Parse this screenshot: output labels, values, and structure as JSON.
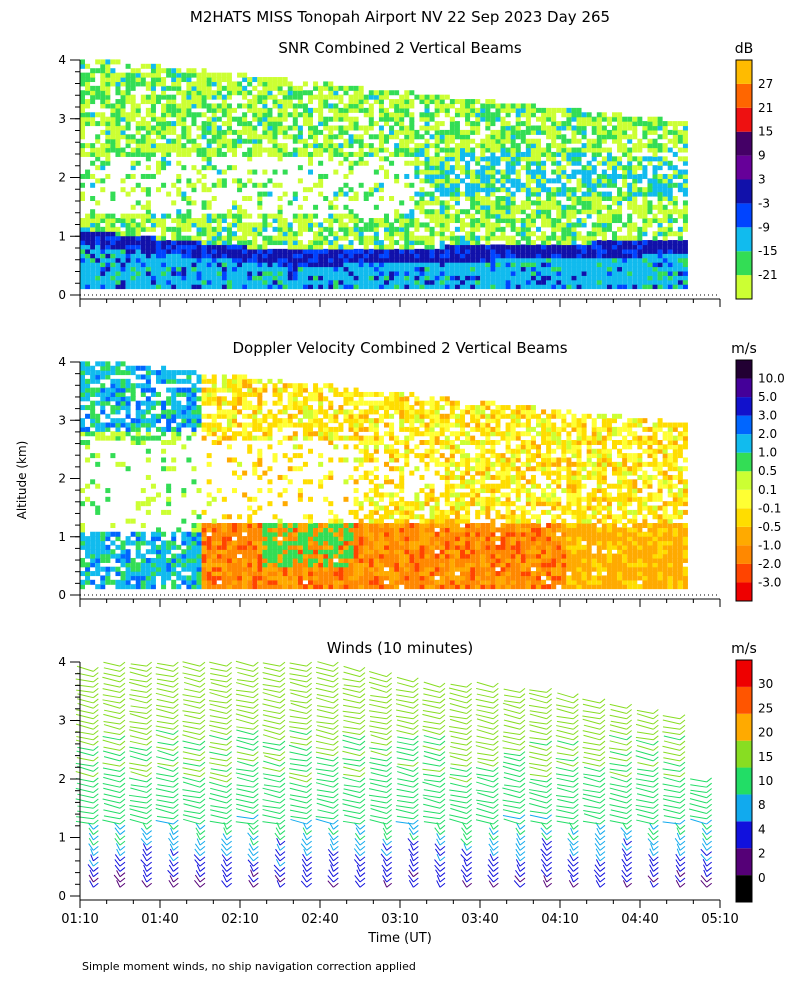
{
  "figure": {
    "title": "M2HATS MISS Tonopah Airport NV  22 Sep 2023 Day 265",
    "ylabel": "Altitude (km)",
    "xlabel": "Time (UT)",
    "footnote": "Simple moment winds, no ship navigation correction applied"
  },
  "colors": {
    "snr": [
      "#ccff33",
      "#33dd55",
      "#11bbee",
      "#0044ff",
      "#1111aa",
      "#660099",
      "#440066",
      "#ee1111",
      "#ff6600",
      "#ffbb00"
    ],
    "doppler": [
      "#ee0000",
      "#ff4400",
      "#ff8800",
      "#ffaa00",
      "#ffdd00",
      "#ffff33",
      "#ccff33",
      "#33dd55",
      "#11bbee",
      "#0066ff",
      "#1111cc",
      "#440099",
      "#220033"
    ],
    "winds": [
      "#000000",
      "#550077",
      "#1111dd",
      "#11aaee",
      "#22dd66",
      "#88dd22",
      "#ffaa00",
      "#ff5500",
      "#ee0000"
    ]
  },
  "chart_data": [
    {
      "type": "heatmap",
      "title": "SNR Combined 2 Vertical Beams",
      "xlabel": "",
      "ylabel": "Altitude (km)",
      "xlim": [
        "01:10",
        "05:10"
      ],
      "ylim": [
        0,
        4
      ],
      "x_ticks": [
        "01:10",
        "01:40",
        "02:10",
        "02:40",
        "03:10",
        "03:40",
        "04:10",
        "04:40",
        "05:10"
      ],
      "y_ticks": [
        "0",
        "1",
        "2",
        "3",
        "4"
      ],
      "colorbar": {
        "unit": "dB",
        "labels": [
          "-21",
          "-15",
          "-9",
          "-3",
          "3",
          "9",
          "15",
          "21",
          "27"
        ]
      },
      "data_end_time": "04:58",
      "top_altitude_km_start": 4.0,
      "top_altitude_km_end": 2.9,
      "strong_layer_km_start": 0.95,
      "strong_layer_km_mid": 0.6,
      "strong_layer_km_end": 0.8
    },
    {
      "type": "heatmap",
      "title": "Doppler Velocity Combined 2 Vertical Beams",
      "xlabel": "",
      "ylabel": "Altitude (km)",
      "xlim": [
        "01:10",
        "05:10"
      ],
      "ylim": [
        0,
        4
      ],
      "x_ticks": [
        "01:10",
        "01:40",
        "02:10",
        "02:40",
        "03:10",
        "03:40",
        "04:10",
        "04:40",
        "05:10"
      ],
      "y_ticks": [
        "0",
        "1",
        "2",
        "3",
        "4"
      ],
      "colorbar": {
        "unit": "m/s",
        "labels": [
          "10.0",
          "5.0",
          "3.0",
          "2.0",
          "1.0",
          "0.5",
          "0.1",
          "-0.1",
          "-0.5",
          "-1.0",
          "-2.0",
          "-3.0"
        ]
      },
      "data_end_time": "04:58"
    },
    {
      "type": "scatter",
      "title": "Winds (10 minutes)",
      "xlabel": "Time (UT)",
      "ylabel": "Altitude (km)",
      "xlim": [
        "01:10",
        "05:10"
      ],
      "ylim": [
        0,
        4
      ],
      "x_ticks": [
        "01:10",
        "01:40",
        "02:10",
        "02:40",
        "03:10",
        "03:40",
        "04:10",
        "04:40",
        "05:10"
      ],
      "y_ticks": [
        "0",
        "1",
        "2",
        "3",
        "4"
      ],
      "colorbar": {
        "unit": "m/s",
        "labels": [
          "0",
          "2",
          "4",
          "8",
          "10",
          "15",
          "20",
          "25",
          "30"
        ]
      },
      "profile_times_min": [
        5,
        15,
        25,
        35,
        45,
        55,
        65,
        75,
        85,
        95,
        105,
        115,
        125,
        135,
        145,
        155,
        165,
        175,
        185,
        195,
        205,
        215,
        225,
        235
      ],
      "profile_top_km": [
        3.9,
        4.0,
        4.0,
        4.0,
        4.0,
        4.0,
        4.0,
        4.0,
        4.0,
        4.0,
        3.9,
        3.8,
        3.7,
        3.65,
        3.6,
        3.6,
        3.55,
        3.5,
        3.4,
        3.35,
        3.25,
        3.15,
        3.1,
        2.0
      ],
      "speed_mps_at_0km": 3,
      "speed_mps_at_1km": 10,
      "speed_mps_at_2km": 14,
      "speed_mps_at_3km": 17,
      "speed_mps_at_4km": 18
    }
  ]
}
